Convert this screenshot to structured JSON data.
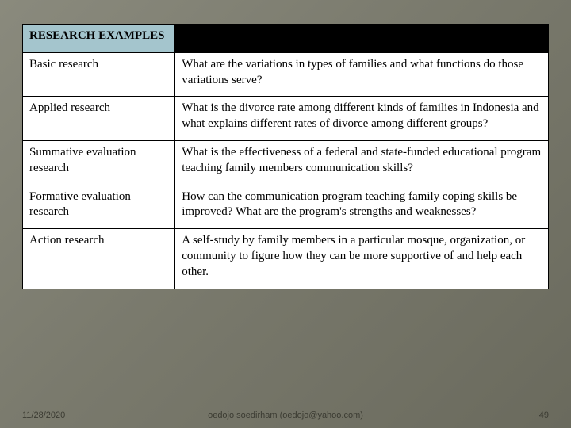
{
  "table": {
    "header_left": "RESEARCH EXAMPLES",
    "header_right": "",
    "col_widths": [
      "29%",
      "71%"
    ],
    "header_bg_left": "#a4c5cd",
    "header_bg_right": "#000000",
    "border_color": "#000000",
    "cell_bg": "#ffffff",
    "font_size": 15,
    "rows": [
      {
        "label": "Basic research",
        "text": "What are the variations in types of families and what functions do those variations serve?"
      },
      {
        "label": "Applied research",
        "text": "What is the divorce rate among different kinds of families in Indonesia and what explains different rates of divorce among different groups?"
      },
      {
        "label": "Summative evaluation research",
        "text": "What is the effectiveness of a federal and state-funded educational program teaching family members communication skills?"
      },
      {
        "label": "Formative evaluation research",
        "text": "How can the communication program teaching family coping skills be improved?  What are the program's strengths and weaknesses?"
      },
      {
        "label": "Action research",
        "text": "A self-study by family members in a particular mosque, organization, or community to figure how they can be more supportive  of and help each other."
      }
    ]
  },
  "footer": {
    "date": "11/28/2020",
    "author": "oedojo soedirham (oedojo@yahoo.com)",
    "page": "49"
  },
  "background": {
    "gradient_from": "#8a8a7d",
    "gradient_to": "#6a6a5d"
  }
}
